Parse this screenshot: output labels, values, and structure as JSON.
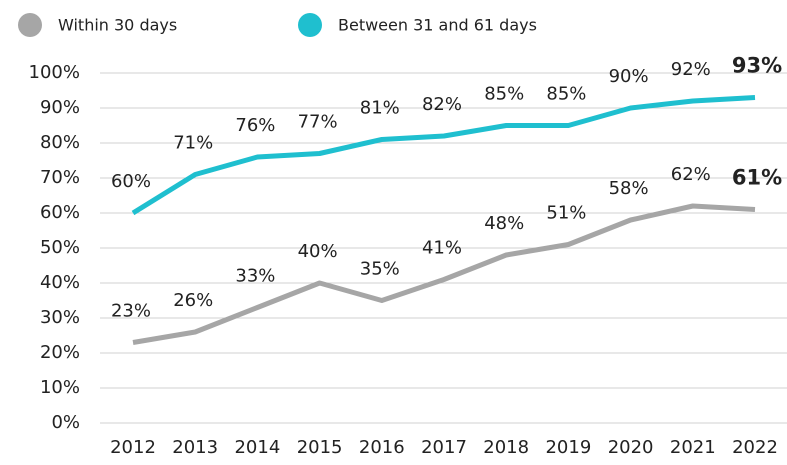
{
  "chart_data": {
    "type": "line",
    "categories": [
      "2012",
      "2013",
      "2014",
      "2015",
      "2016",
      "2017",
      "2018",
      "2019",
      "2020",
      "2021",
      "2022"
    ],
    "series": [
      {
        "name": "Within 30 days",
        "color": "#a6a6a6",
        "values": [
          23,
          26,
          33,
          40,
          35,
          41,
          48,
          51,
          58,
          62,
          61
        ],
        "value_labels": [
          "23%",
          "26%",
          "33%",
          "40%",
          "35%",
          "41%",
          "48%",
          "51%",
          "58%",
          "62%",
          "61%"
        ]
      },
      {
        "name": "Between 31 and 61 days",
        "color": "#1fbfcf",
        "values": [
          60,
          71,
          76,
          77,
          81,
          82,
          85,
          85,
          90,
          92,
          93
        ],
        "value_labels": [
          "60%",
          "71%",
          "76%",
          "77%",
          "81%",
          "82%",
          "85%",
          "85%",
          "90%",
          "92%",
          "93%"
        ]
      }
    ],
    "ylim": [
      0,
      100
    ],
    "yticks": [
      {
        "value": 0,
        "label": "0%"
      },
      {
        "value": 10,
        "label": "10%"
      },
      {
        "value": 20,
        "label": "20%"
      },
      {
        "value": 30,
        "label": "30%"
      },
      {
        "value": 40,
        "label": "40%"
      },
      {
        "value": 50,
        "label": "50%"
      },
      {
        "value": 60,
        "label": "60%"
      },
      {
        "value": 70,
        "label": "70%"
      },
      {
        "value": 80,
        "label": "80%"
      },
      {
        "value": 90,
        "label": "90%"
      },
      {
        "value": 100,
        "label": "100%"
      }
    ],
    "grid": true,
    "legend": "top"
  }
}
